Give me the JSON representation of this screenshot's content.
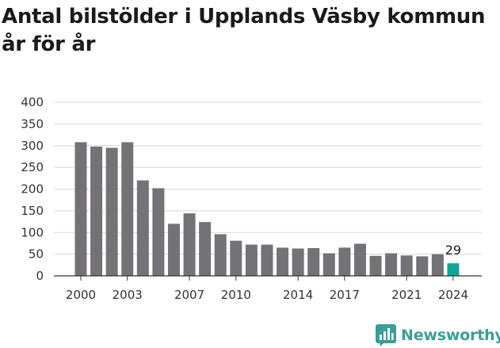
{
  "title": "Antal bilstölder i Upplands Väsby kommun år för år",
  "brand": {
    "name": "Newsworthy",
    "icon": "newsworthy-logo-icon",
    "color": "#3a9f96"
  },
  "colors": {
    "bar": "#747277",
    "highlight": "#12a595",
    "grid": "#d9d9d9",
    "axis": "#333333"
  },
  "chart_data": {
    "type": "bar",
    "title": "Antal bilstölder i Upplands Väsby kommun år för år",
    "xlabel": "",
    "ylabel": "",
    "ylim": [
      0,
      400
    ],
    "yticks": [
      0,
      50,
      100,
      150,
      200,
      250,
      300,
      350,
      400
    ],
    "xticks": [
      "2000",
      "2003",
      "2007",
      "2010",
      "2014",
      "2017",
      "2021",
      "2024"
    ],
    "grid": true,
    "categories": [
      "2000",
      "2001",
      "2002",
      "2003",
      "2004",
      "2005",
      "2006",
      "2007",
      "2008",
      "2009",
      "2010",
      "2011",
      "2012",
      "2013",
      "2014",
      "2015",
      "2016",
      "2017",
      "2018",
      "2019",
      "2020",
      "2021",
      "2022",
      "2023",
      "2024"
    ],
    "values": [
      308,
      298,
      295,
      308,
      220,
      202,
      120,
      144,
      124,
      96,
      81,
      72,
      72,
      65,
      63,
      64,
      52,
      65,
      74,
      46,
      52,
      47,
      45,
      50,
      29
    ],
    "highlight_index": 24,
    "data_labels": [
      {
        "index": 24,
        "text": "29"
      }
    ]
  }
}
